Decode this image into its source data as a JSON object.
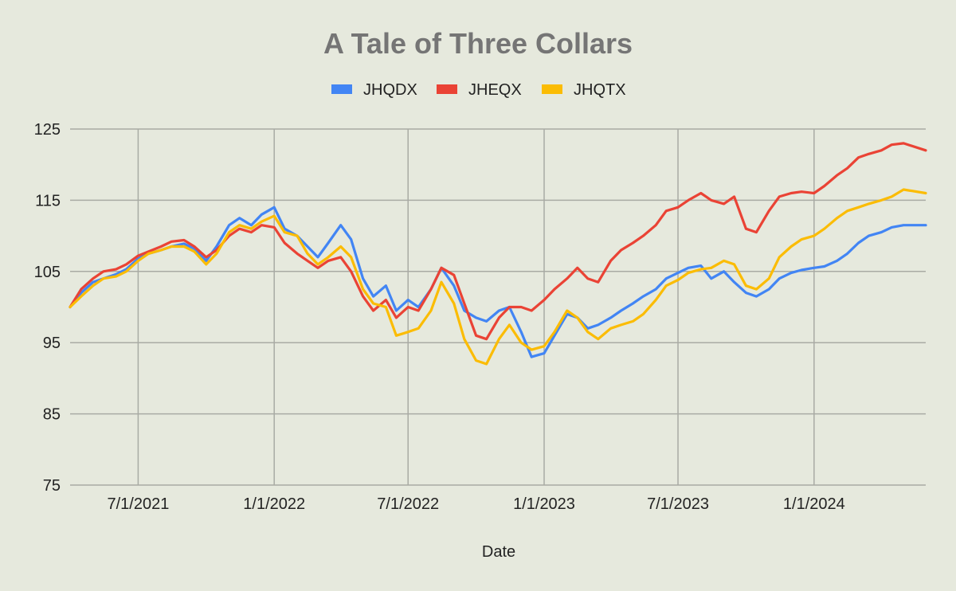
{
  "chart_data": {
    "type": "line",
    "title": "A Tale of Three Collars",
    "xlabel": "Date",
    "ylabel": "",
    "ylim": [
      75,
      125
    ],
    "xlim": [
      "2021-03-31",
      "2024-05-31"
    ],
    "legend_position": "top",
    "grid": true,
    "y_ticks": [
      "75",
      "85",
      "95",
      "105",
      "115",
      "125"
    ],
    "x_ticks": [
      {
        "date": "2021-07-01",
        "label": "7/1/2021"
      },
      {
        "date": "2022-01-01",
        "label": "1/1/2022"
      },
      {
        "date": "2022-07-01",
        "label": "7/1/2022"
      },
      {
        "date": "2023-01-01",
        "label": "1/1/2023"
      },
      {
        "date": "2023-07-01",
        "label": "7/1/2023"
      },
      {
        "date": "2024-01-01",
        "label": "1/1/2024"
      }
    ],
    "series": [
      {
        "name": "JHQDX",
        "color": "#4285f4",
        "points": [
          [
            "2021-03-31",
            100.0
          ],
          [
            "2021-04-15",
            102.0
          ],
          [
            "2021-05-01",
            103.5
          ],
          [
            "2021-05-15",
            104.0
          ],
          [
            "2021-06-01",
            104.6
          ],
          [
            "2021-06-15",
            105.3
          ],
          [
            "2021-07-01",
            106.8
          ],
          [
            "2021-07-15",
            107.5
          ],
          [
            "2021-08-01",
            108.0
          ],
          [
            "2021-08-15",
            108.5
          ],
          [
            "2021-09-01",
            108.9
          ],
          [
            "2021-09-15",
            108.2
          ],
          [
            "2021-10-01",
            106.5
          ],
          [
            "2021-10-15",
            108.5
          ],
          [
            "2021-11-01",
            111.5
          ],
          [
            "2021-11-15",
            112.5
          ],
          [
            "2021-12-01",
            111.5
          ],
          [
            "2021-12-15",
            113.0
          ],
          [
            "2022-01-01",
            114.0
          ],
          [
            "2022-01-15",
            111.0
          ],
          [
            "2022-02-01",
            110.0
          ],
          [
            "2022-02-15",
            108.5
          ],
          [
            "2022-03-01",
            107.0
          ],
          [
            "2022-03-15",
            109.0
          ],
          [
            "2022-04-01",
            111.5
          ],
          [
            "2022-04-15",
            109.5
          ],
          [
            "2022-05-01",
            104.0
          ],
          [
            "2022-05-15",
            101.5
          ],
          [
            "2022-06-01",
            103.0
          ],
          [
            "2022-06-15",
            99.5
          ],
          [
            "2022-07-01",
            101.0
          ],
          [
            "2022-07-15",
            100.0
          ],
          [
            "2022-08-01",
            102.5
          ],
          [
            "2022-08-15",
            105.5
          ],
          [
            "2022-09-01",
            103.0
          ],
          [
            "2022-09-15",
            99.5
          ],
          [
            "2022-10-01",
            98.5
          ],
          [
            "2022-10-15",
            98.0
          ],
          [
            "2022-11-01",
            99.5
          ],
          [
            "2022-11-15",
            100.0
          ],
          [
            "2022-12-01",
            96.5
          ],
          [
            "2022-12-15",
            93.0
          ],
          [
            "2023-01-01",
            93.5
          ],
          [
            "2023-01-15",
            96.0
          ],
          [
            "2023-02-01",
            99.0
          ],
          [
            "2023-02-15",
            98.5
          ],
          [
            "2023-03-01",
            97.0
          ],
          [
            "2023-03-15",
            97.5
          ],
          [
            "2023-04-01",
            98.5
          ],
          [
            "2023-04-15",
            99.5
          ],
          [
            "2023-05-01",
            100.5
          ],
          [
            "2023-05-15",
            101.5
          ],
          [
            "2023-06-01",
            102.5
          ],
          [
            "2023-06-15",
            104.0
          ],
          [
            "2023-07-01",
            104.8
          ],
          [
            "2023-07-15",
            105.5
          ],
          [
            "2023-08-01",
            105.8
          ],
          [
            "2023-08-15",
            104.0
          ],
          [
            "2023-09-01",
            105.0
          ],
          [
            "2023-09-15",
            103.5
          ],
          [
            "2023-10-01",
            102.0
          ],
          [
            "2023-10-15",
            101.5
          ],
          [
            "2023-11-01",
            102.5
          ],
          [
            "2023-11-15",
            104.0
          ],
          [
            "2023-12-01",
            104.8
          ],
          [
            "2023-12-15",
            105.2
          ],
          [
            "2024-01-01",
            105.5
          ],
          [
            "2024-01-15",
            105.7
          ],
          [
            "2024-02-01",
            106.5
          ],
          [
            "2024-02-15",
            107.5
          ],
          [
            "2024-03-01",
            109.0
          ],
          [
            "2024-03-15",
            110.0
          ],
          [
            "2024-04-01",
            110.5
          ],
          [
            "2024-04-15",
            111.2
          ],
          [
            "2024-05-01",
            111.5
          ],
          [
            "2024-05-31",
            111.5
          ]
        ]
      },
      {
        "name": "JHEQX",
        "color": "#ea4335",
        "points": [
          [
            "2021-03-31",
            100.0
          ],
          [
            "2021-04-15",
            102.5
          ],
          [
            "2021-05-01",
            104.0
          ],
          [
            "2021-05-15",
            105.0
          ],
          [
            "2021-06-01",
            105.3
          ],
          [
            "2021-06-15",
            106.0
          ],
          [
            "2021-07-01",
            107.2
          ],
          [
            "2021-07-15",
            107.8
          ],
          [
            "2021-08-01",
            108.5
          ],
          [
            "2021-08-15",
            109.2
          ],
          [
            "2021-09-01",
            109.4
          ],
          [
            "2021-09-15",
            108.5
          ],
          [
            "2021-10-01",
            107.0
          ],
          [
            "2021-10-15",
            108.0
          ],
          [
            "2021-11-01",
            110.0
          ],
          [
            "2021-11-15",
            111.0
          ],
          [
            "2021-12-01",
            110.5
          ],
          [
            "2021-12-15",
            111.5
          ],
          [
            "2022-01-01",
            111.2
          ],
          [
            "2022-01-15",
            109.0
          ],
          [
            "2022-02-01",
            107.5
          ],
          [
            "2022-02-15",
            106.5
          ],
          [
            "2022-03-01",
            105.5
          ],
          [
            "2022-03-15",
            106.5
          ],
          [
            "2022-04-01",
            107.0
          ],
          [
            "2022-04-15",
            105.0
          ],
          [
            "2022-05-01",
            101.5
          ],
          [
            "2022-05-15",
            99.5
          ],
          [
            "2022-06-01",
            101.0
          ],
          [
            "2022-06-15",
            98.5
          ],
          [
            "2022-07-01",
            100.0
          ],
          [
            "2022-07-15",
            99.5
          ],
          [
            "2022-08-01",
            102.5
          ],
          [
            "2022-08-15",
            105.5
          ],
          [
            "2022-09-01",
            104.5
          ],
          [
            "2022-09-15",
            100.5
          ],
          [
            "2022-10-01",
            96.0
          ],
          [
            "2022-10-15",
            95.5
          ],
          [
            "2022-11-01",
            98.5
          ],
          [
            "2022-11-15",
            100.0
          ],
          [
            "2022-12-01",
            100.0
          ],
          [
            "2022-12-15",
            99.5
          ],
          [
            "2023-01-01",
            101.0
          ],
          [
            "2023-01-15",
            102.5
          ],
          [
            "2023-02-01",
            104.0
          ],
          [
            "2023-02-15",
            105.5
          ],
          [
            "2023-03-01",
            104.0
          ],
          [
            "2023-03-15",
            103.5
          ],
          [
            "2023-04-01",
            106.5
          ],
          [
            "2023-04-15",
            108.0
          ],
          [
            "2023-05-01",
            109.0
          ],
          [
            "2023-05-15",
            110.0
          ],
          [
            "2023-06-01",
            111.5
          ],
          [
            "2023-06-15",
            113.5
          ],
          [
            "2023-07-01",
            114.0
          ],
          [
            "2023-07-15",
            115.0
          ],
          [
            "2023-08-01",
            116.0
          ],
          [
            "2023-08-15",
            115.0
          ],
          [
            "2023-09-01",
            114.5
          ],
          [
            "2023-09-15",
            115.5
          ],
          [
            "2023-10-01",
            111.0
          ],
          [
            "2023-10-15",
            110.5
          ],
          [
            "2023-11-01",
            113.5
          ],
          [
            "2023-11-15",
            115.5
          ],
          [
            "2023-12-01",
            116.0
          ],
          [
            "2023-12-15",
            116.2
          ],
          [
            "2024-01-01",
            116.0
          ],
          [
            "2024-01-15",
            117.0
          ],
          [
            "2024-02-01",
            118.5
          ],
          [
            "2024-02-15",
            119.5
          ],
          [
            "2024-03-01",
            121.0
          ],
          [
            "2024-03-15",
            121.5
          ],
          [
            "2024-04-01",
            122.0
          ],
          [
            "2024-04-15",
            122.8
          ],
          [
            "2024-05-01",
            123.0
          ],
          [
            "2024-05-31",
            122.0
          ]
        ]
      },
      {
        "name": "JHQTX",
        "color": "#fbbc04",
        "points": [
          [
            "2021-03-31",
            100.0
          ],
          [
            "2021-04-15",
            101.5
          ],
          [
            "2021-05-01",
            103.0
          ],
          [
            "2021-05-15",
            104.0
          ],
          [
            "2021-06-01",
            104.3
          ],
          [
            "2021-06-15",
            105.0
          ],
          [
            "2021-07-01",
            106.5
          ],
          [
            "2021-07-15",
            107.5
          ],
          [
            "2021-08-01",
            108.0
          ],
          [
            "2021-08-15",
            108.5
          ],
          [
            "2021-09-01",
            108.5
          ],
          [
            "2021-09-15",
            107.8
          ],
          [
            "2021-10-01",
            106.0
          ],
          [
            "2021-10-15",
            107.5
          ],
          [
            "2021-11-01",
            110.5
          ],
          [
            "2021-11-15",
            111.5
          ],
          [
            "2021-12-01",
            111.0
          ],
          [
            "2021-12-15",
            112.0
          ],
          [
            "2022-01-01",
            112.8
          ],
          [
            "2022-01-15",
            110.5
          ],
          [
            "2022-02-01",
            110.0
          ],
          [
            "2022-02-15",
            107.5
          ],
          [
            "2022-03-01",
            106.0
          ],
          [
            "2022-03-15",
            107.0
          ],
          [
            "2022-04-01",
            108.5
          ],
          [
            "2022-04-15",
            107.0
          ],
          [
            "2022-05-01",
            102.5
          ],
          [
            "2022-05-15",
            100.5
          ],
          [
            "2022-06-01",
            100.0
          ],
          [
            "2022-06-15",
            96.0
          ],
          [
            "2022-07-01",
            96.5
          ],
          [
            "2022-07-15",
            97.0
          ],
          [
            "2022-08-01",
            99.5
          ],
          [
            "2022-08-15",
            103.5
          ],
          [
            "2022-09-01",
            100.5
          ],
          [
            "2022-09-15",
            95.5
          ],
          [
            "2022-10-01",
            92.5
          ],
          [
            "2022-10-15",
            92.0
          ],
          [
            "2022-11-01",
            95.5
          ],
          [
            "2022-11-15",
            97.5
          ],
          [
            "2022-12-01",
            95.0
          ],
          [
            "2022-12-15",
            94.0
          ],
          [
            "2023-01-01",
            94.5
          ],
          [
            "2023-01-15",
            96.5
          ],
          [
            "2023-02-01",
            99.5
          ],
          [
            "2023-02-15",
            98.5
          ],
          [
            "2023-03-01",
            96.5
          ],
          [
            "2023-03-15",
            95.5
          ],
          [
            "2023-04-01",
            97.0
          ],
          [
            "2023-04-15",
            97.5
          ],
          [
            "2023-05-01",
            98.0
          ],
          [
            "2023-05-15",
            99.0
          ],
          [
            "2023-06-01",
            101.0
          ],
          [
            "2023-06-15",
            103.0
          ],
          [
            "2023-07-01",
            103.8
          ],
          [
            "2023-07-15",
            104.8
          ],
          [
            "2023-08-01",
            105.3
          ],
          [
            "2023-08-15",
            105.5
          ],
          [
            "2023-09-01",
            106.5
          ],
          [
            "2023-09-15",
            106.0
          ],
          [
            "2023-10-01",
            103.0
          ],
          [
            "2023-10-15",
            102.5
          ],
          [
            "2023-11-01",
            104.0
          ],
          [
            "2023-11-15",
            107.0
          ],
          [
            "2023-12-01",
            108.5
          ],
          [
            "2023-12-15",
            109.5
          ],
          [
            "2024-01-01",
            110.0
          ],
          [
            "2024-01-15",
            111.0
          ],
          [
            "2024-02-01",
            112.5
          ],
          [
            "2024-02-15",
            113.5
          ],
          [
            "2024-03-01",
            114.0
          ],
          [
            "2024-03-15",
            114.5
          ],
          [
            "2024-04-01",
            115.0
          ],
          [
            "2024-04-15",
            115.5
          ],
          [
            "2024-05-01",
            116.5
          ],
          [
            "2024-05-31",
            116.0
          ]
        ]
      }
    ]
  }
}
